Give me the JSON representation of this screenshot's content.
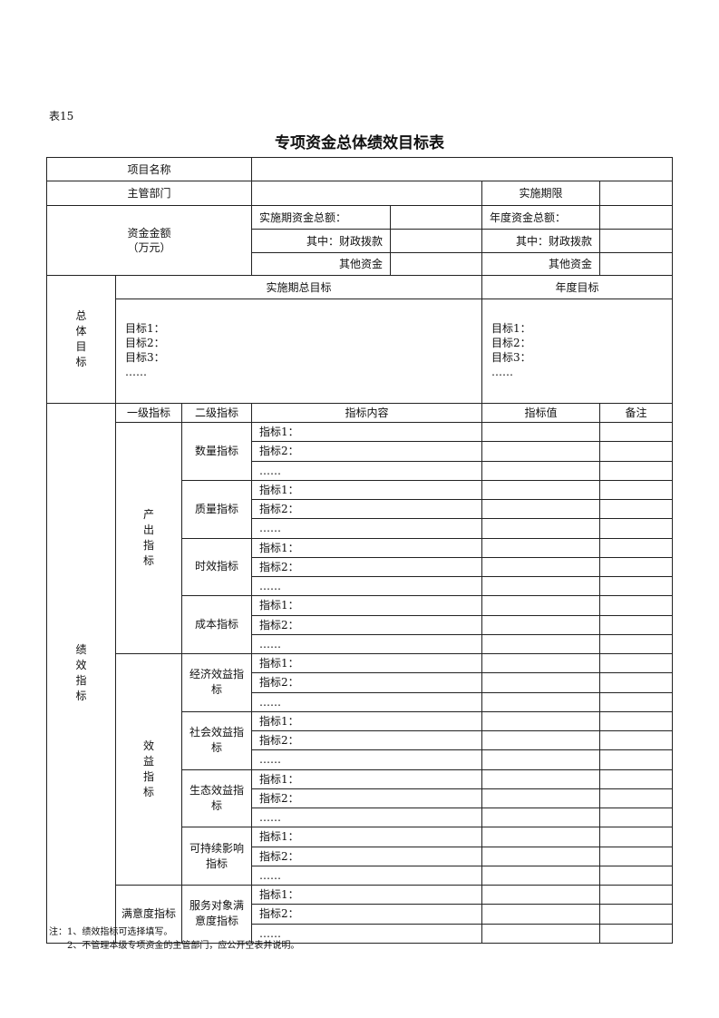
{
  "table_no": "表15",
  "title": "专项资金总体绩效目标表",
  "header": {
    "project_name": "项目名称",
    "department": "主管部门",
    "period": "实施期限",
    "funds_label": "资金金额",
    "funds_unit": "（万元）",
    "period_total": "实施期资金总额：",
    "annual_total": "年度资金总额：",
    "fiscal": "其中：财政拨款",
    "other": "其他资金"
  },
  "goals": {
    "label": [
      "总",
      "体",
      "目",
      "标"
    ],
    "period_goal": "实施期总目标",
    "annual_goal": "年度目标",
    "items": [
      "目标1：",
      "目标2：",
      "目标3：",
      "……"
    ]
  },
  "perf": {
    "label": [
      "绩",
      "效",
      "指",
      "标"
    ],
    "col_level1": "一级指标",
    "col_level2": "二级指标",
    "col_content": "指标内容",
    "col_value": "指标值",
    "col_note": "备注",
    "row_items": [
      "指标1：",
      "指标2：",
      "……"
    ],
    "groups": [
      {
        "name": "产\n出\n指\n标",
        "subs": [
          "数量指标",
          "质量指标",
          "时效指标",
          "成本指标"
        ]
      },
      {
        "name": "效\n益\n指\n标",
        "subs": [
          "经济效益指标",
          "社会效益指标",
          "生态效益指标",
          "可持续影响指标"
        ]
      },
      {
        "name": "满意度指标",
        "subs": [
          "服务对象满意度指标"
        ]
      }
    ]
  },
  "notes": [
    "注：1、绩效指标可选择填写。",
    "2、不管理本级专项资金的主管部门，应公开空表并说明。"
  ]
}
